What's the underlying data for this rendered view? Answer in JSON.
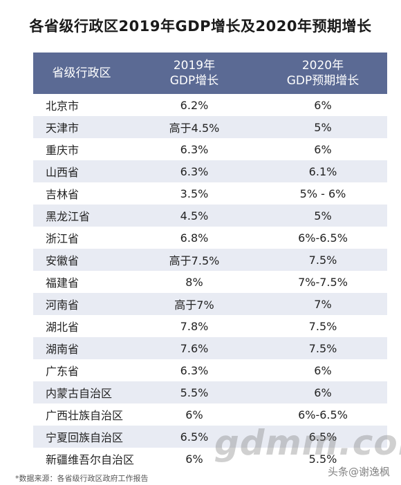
{
  "title": "各省级行政区2019年GDP增长及2020年预期增长",
  "header": {
    "col1": "省级行政区",
    "col2_line1": "2019年",
    "col2_line2": "GDP增长",
    "col3_line1": "2020年",
    "col3_line2": "GDP预期增长"
  },
  "chart_data": {
    "type": "table",
    "title": "各省级行政区2019年GDP增长及2020年预期增长",
    "columns": [
      "省级行政区",
      "2019年GDP增长",
      "2020年GDP预期增长"
    ],
    "rows": [
      [
        "北京市",
        "6.2%",
        "6%"
      ],
      [
        "天津市",
        "高于4.5%",
        "5%"
      ],
      [
        "重庆市",
        "6.3%",
        "6%"
      ],
      [
        "山西省",
        "6.3%",
        "6.1%"
      ],
      [
        "吉林省",
        "3.5%",
        "5% - 6%"
      ],
      [
        "黑龙江省",
        "4.5%",
        "5%"
      ],
      [
        "浙江省",
        "6.8%",
        "6%-6.5%"
      ],
      [
        "安徽省",
        "高于7.5%",
        "7.5%"
      ],
      [
        "福建省",
        "8%",
        "7%-7.5%"
      ],
      [
        "河南省",
        "高于7%",
        "7%"
      ],
      [
        "湖北省",
        "7.8%",
        "7.5%"
      ],
      [
        "湖南省",
        "7.6%",
        "7.5%"
      ],
      [
        "广东省",
        "6.3%",
        "6%"
      ],
      [
        "内蒙古自治区",
        "5.5%",
        "6%"
      ],
      [
        "广西壮族自治区",
        "6%",
        "6%-6.5%"
      ],
      [
        "宁夏回族自治区",
        "6.5%",
        "6.5%"
      ],
      [
        "新疆维吾尔自治区",
        "6%",
        "5.5%"
      ]
    ]
  },
  "footnote": "*数据来源：各省级行政区政府工作报告",
  "watermark_site": "gdmm.com",
  "watermark_toutiao": "头条@谢逸枫",
  "colors": {
    "header_bg": "#5b6a94",
    "alt_row_bg": "#e8ebf3",
    "header_text": "#ffffff"
  }
}
